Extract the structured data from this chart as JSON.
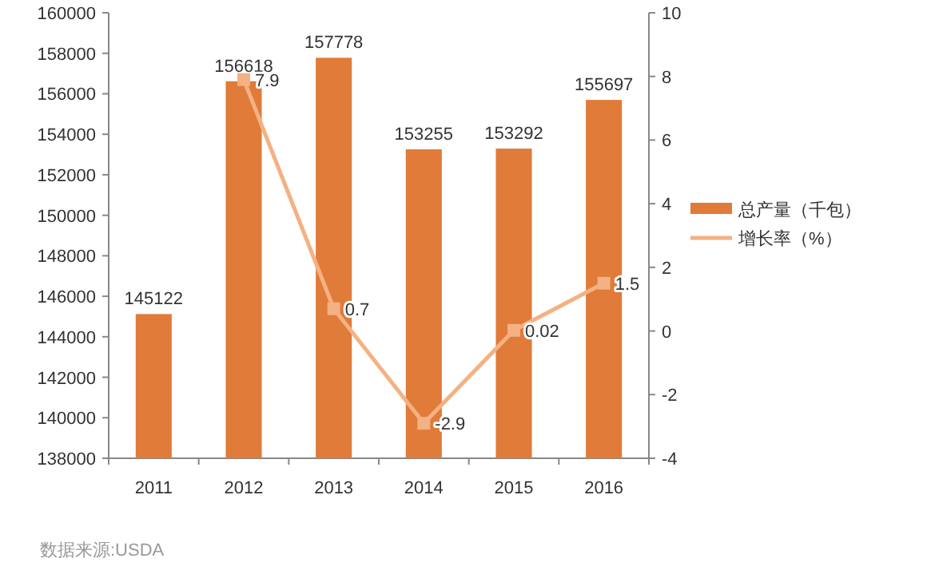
{
  "chart_data": {
    "type": "bar",
    "categories": [
      "2011",
      "2012",
      "2013",
      "2014",
      "2015",
      "2016"
    ],
    "series": [
      {
        "name": "总产量（千包）",
        "color": "#e07b39",
        "values": [
          145122,
          156618,
          157778,
          153255,
          153292,
          155697
        ]
      },
      {
        "name": "增长率（%）",
        "type": "line",
        "axis": "y2",
        "color": "#f4b183",
        "values": [
          null,
          7.9,
          0.7,
          -2.9,
          0.02,
          1.5
        ]
      }
    ],
    "ylim": [
      138000,
      160000
    ],
    "yticks": [
      138000,
      140000,
      142000,
      144000,
      146000,
      148000,
      150000,
      152000,
      154000,
      156000,
      158000,
      160000
    ],
    "y2lim": [
      -4,
      10
    ],
    "y2ticks": [
      -4,
      -2,
      0,
      2,
      4,
      6,
      8,
      10
    ],
    "marker": "square",
    "data_labels": true,
    "legend": "right",
    "grid": false,
    "annotations": [
      "数据来源:USDA"
    ]
  }
}
